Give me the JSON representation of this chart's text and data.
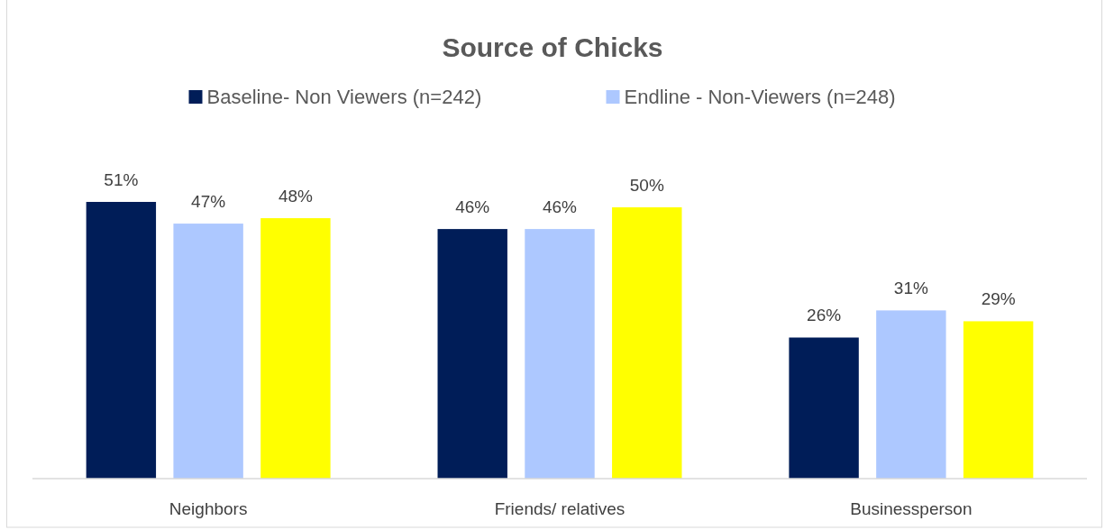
{
  "chart_data": {
    "type": "bar",
    "title": "Source of Chicks",
    "categories": [
      "Neighbors",
      "Friends/ relatives",
      "Businessperson"
    ],
    "series": [
      {
        "name": "Baseline- Non Viewers (n=242)",
        "color": "#001d58",
        "values": [
          51,
          46,
          26
        ],
        "value_labels": [
          "51%",
          "46%",
          "26%"
        ]
      },
      {
        "name": "Endline - Non-Viewers (n=248)",
        "color": "#adc8ff",
        "values": [
          47,
          46,
          31
        ],
        "value_labels": [
          "47%",
          "46%",
          "31%"
        ]
      },
      {
        "color": "#ffff00",
        "values": [
          48,
          50,
          29
        ],
        "value_labels": [
          "48%",
          "50%",
          "29%"
        ]
      }
    ],
    "tick_labels": "x",
    "legend": "top"
  }
}
